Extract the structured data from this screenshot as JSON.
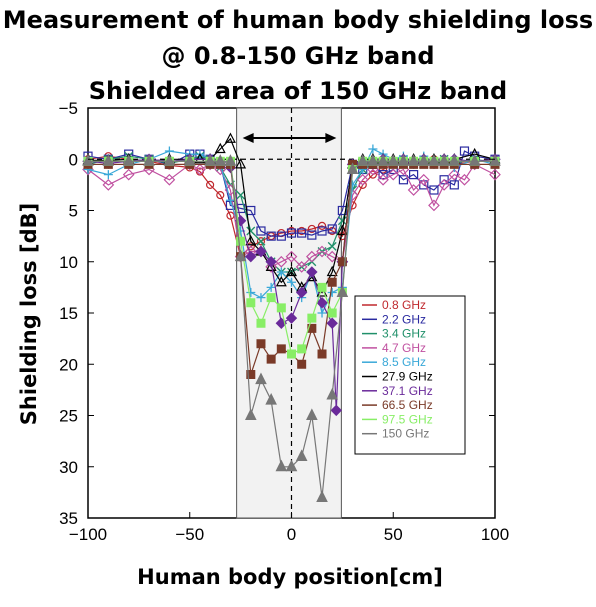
{
  "title": {
    "line1": "Measurement of human body shielding loss",
    "line2": "@ 0.8-150 GHz band",
    "line3": "Shielded area of 150 GHz band"
  },
  "chart_data": {
    "type": "line",
    "xlabel": "Human body position[cm]",
    "ylabel": "Shielding loss [dB]",
    "xlim": [
      -100,
      100
    ],
    "ylim": [
      -5,
      35
    ],
    "y_inverted": true,
    "xticks": [
      -100,
      -50,
      0,
      50,
      100
    ],
    "yticks": [
      -5,
      0,
      5,
      10,
      15,
      20,
      25,
      30,
      35
    ],
    "shaded_region": [
      -25,
      25
    ],
    "arrow_span": [
      -25,
      25
    ],
    "legend_position": "center-right",
    "series": [
      {
        "name": "0.8 GHz",
        "color": "#c0282d",
        "marker": "circle",
        "x": [
          -100,
          -90,
          -80,
          -70,
          -60,
          -50,
          -45,
          -40,
          -35,
          -30,
          -25,
          -20,
          -15,
          -10,
          -5,
          0,
          5,
          10,
          15,
          20,
          25,
          30,
          35,
          40,
          45,
          50,
          55,
          60,
          65,
          70,
          75,
          80,
          90,
          100
        ],
        "y": [
          0,
          -0.3,
          0,
          0.2,
          0.6,
          0.8,
          1.2,
          2.5,
          3.5,
          5.5,
          9.5,
          8.5,
          8,
          7.5,
          7.2,
          7,
          7,
          6.8,
          6.5,
          7,
          7.5,
          4.5,
          2.5,
          1.5,
          1,
          0.5,
          0.5,
          0.2,
          0.3,
          0,
          0,
          0.5,
          0.2,
          0
        ]
      },
      {
        "name": "2.2 GHz",
        "color": "#2a2aa0",
        "marker": "square-open",
        "x": [
          -100,
          -90,
          -80,
          -70,
          -60,
          -50,
          -45,
          -40,
          -35,
          -30,
          -25,
          -20,
          -15,
          -10,
          -5,
          0,
          5,
          10,
          15,
          20,
          25,
          30,
          35,
          40,
          45,
          50,
          55,
          60,
          65,
          70,
          75,
          80,
          85,
          90,
          100
        ],
        "y": [
          -0.3,
          0,
          -0.5,
          0,
          0.5,
          -0.5,
          -0.5,
          0,
          0.5,
          4.5,
          4.8,
          5,
          7,
          7.5,
          7.5,
          7.2,
          7.2,
          7.4,
          7,
          6.8,
          5,
          0.5,
          1,
          0.5,
          1.5,
          1,
          2,
          1.5,
          2.5,
          3,
          2,
          2.5,
          -0.8,
          -0.3,
          0
        ]
      },
      {
        "name": "3.4 GHz",
        "color": "#20906a",
        "marker": "cross",
        "x": [
          -100,
          -90,
          -80,
          -70,
          -60,
          -50,
          -45,
          -40,
          -35,
          -30,
          -25,
          -20,
          -15,
          -10,
          -5,
          0,
          5,
          10,
          15,
          20,
          25,
          30,
          35,
          40,
          45,
          50,
          55,
          60,
          65,
          70,
          75,
          80,
          90,
          100
        ],
        "y": [
          0.5,
          0,
          -0.3,
          0,
          0.4,
          0,
          -0.3,
          0,
          0.8,
          2.5,
          3.5,
          7,
          8,
          10,
          11,
          11,
          10.5,
          10,
          9,
          8.5,
          6,
          3,
          1,
          0.5,
          0.4,
          0.3,
          0,
          0.3,
          0.5,
          0.3,
          0,
          0.4,
          0,
          0.3
        ]
      },
      {
        "name": "4.7 GHz",
        "color": "#c050a0",
        "marker": "diamond-open",
        "x": [
          -100,
          -90,
          -80,
          -70,
          -60,
          -50,
          -45,
          -40,
          -35,
          -30,
          -25,
          -20,
          -15,
          -10,
          -5,
          0,
          5,
          10,
          15,
          20,
          25,
          30,
          35,
          40,
          45,
          50,
          55,
          60,
          65,
          70,
          75,
          80,
          85,
          90,
          100
        ],
        "y": [
          1,
          2.5,
          1.5,
          1,
          2,
          0.5,
          1,
          0.5,
          1,
          3,
          9.5,
          9,
          9,
          10.5,
          10,
          9.5,
          10.5,
          9.5,
          9,
          9.5,
          10,
          3.5,
          2,
          1,
          2,
          1.5,
          1,
          3,
          2,
          4.5,
          2.5,
          1.5,
          2,
          0.5,
          1.5
        ]
      },
      {
        "name": "8.5 GHz",
        "color": "#3aa8d8",
        "marker": "plus",
        "x": [
          -100,
          -90,
          -80,
          -70,
          -60,
          -50,
          -45,
          -40,
          -35,
          -30,
          -25,
          -20,
          -15,
          -10,
          -5,
          0,
          5,
          10,
          15,
          20,
          25,
          30,
          35,
          40,
          45,
          50,
          55,
          60,
          65,
          70,
          75,
          80,
          90,
          100
        ],
        "y": [
          1,
          1.5,
          0.5,
          0,
          -0.8,
          -0.5,
          -0.5,
          0,
          0.5,
          4,
          7,
          13,
          13.5,
          12.5,
          11,
          12,
          13.5,
          11,
          15,
          13,
          12.5,
          2.5,
          1,
          -1,
          -0.5,
          0,
          -0.3,
          0.5,
          -0.3,
          0.5,
          0,
          0.8,
          0,
          0.5
        ]
      },
      {
        "name": "27.9 GHz",
        "color": "#000000",
        "marker": "triangle-open",
        "x": [
          -100,
          -90,
          -80,
          -70,
          -60,
          -50,
          -45,
          -40,
          -35,
          -30,
          -25,
          -20,
          -15,
          -10,
          -5,
          0,
          5,
          10,
          15,
          20,
          25,
          30,
          35,
          40,
          45,
          50,
          55,
          60,
          65,
          70,
          75,
          80,
          90,
          100
        ],
        "y": [
          0.1,
          0.1,
          0,
          0.2,
          0,
          0,
          0,
          0,
          -1,
          -2,
          0.5,
          8,
          9,
          10.5,
          12,
          11,
          12.5,
          11.5,
          13,
          11,
          7,
          0.5,
          0,
          0,
          0,
          0,
          0,
          0,
          0,
          0,
          0,
          0,
          -0.5,
          0
        ]
      },
      {
        "name": "37.1 GHz",
        "color": "#6a2a9a",
        "marker": "diamond",
        "x": [
          -100,
          -90,
          -80,
          -70,
          -60,
          -50,
          -40,
          -35,
          -30,
          -25,
          -20,
          -15,
          -10,
          -5,
          0,
          5,
          10,
          15,
          20,
          22,
          25,
          30,
          35,
          40,
          45,
          50,
          55,
          60,
          65,
          70,
          75,
          80,
          90,
          100
        ],
        "y": [
          0.2,
          0.4,
          0.2,
          0,
          0.2,
          0,
          0,
          0.3,
          0.8,
          6,
          9.5,
          9,
          10,
          16,
          15.5,
          13,
          11,
          14,
          16,
          24.5,
          10,
          0.5,
          0.3,
          0.2,
          0,
          0.2,
          0,
          0.3,
          0,
          0.2,
          0,
          0,
          0.2,
          0
        ]
      },
      {
        "name": "66.5 GHz",
        "color": "#7a3a28",
        "marker": "square",
        "x": [
          -100,
          -90,
          -80,
          -70,
          -60,
          -50,
          -40,
          -35,
          -30,
          -25,
          -20,
          -15,
          -10,
          -5,
          0,
          5,
          10,
          15,
          20,
          25,
          30,
          35,
          40,
          45,
          50,
          55,
          60,
          65,
          70,
          75,
          80,
          90,
          100
        ],
        "y": [
          0.5,
          0.5,
          0.5,
          0.5,
          0.5,
          0.5,
          0.5,
          0.5,
          0.5,
          9.5,
          21,
          18,
          19.5,
          18.5,
          19,
          20,
          16.5,
          19,
          12,
          10,
          0.5,
          0.5,
          0.5,
          0.5,
          0.5,
          0.5,
          0.5,
          0.5,
          0.5,
          0.5,
          0.5,
          0.5,
          0.5
        ]
      },
      {
        "name": "97.5 GHz",
        "color": "#88ee66",
        "marker": "square",
        "x": [
          -100,
          -90,
          -80,
          -70,
          -60,
          -50,
          -40,
          -35,
          -30,
          -25,
          -20,
          -15,
          -10,
          -5,
          0,
          5,
          10,
          15,
          20,
          25,
          30,
          35,
          40,
          45,
          50,
          55,
          60,
          65,
          70,
          75,
          80,
          90,
          100
        ],
        "y": [
          0.2,
          0.2,
          0.2,
          0.2,
          0.2,
          0.2,
          0.2,
          0.2,
          0.2,
          8,
          14,
          16,
          13.5,
          14.5,
          19,
          18.5,
          15.5,
          12.5,
          15,
          13,
          1,
          0.2,
          0.2,
          0.2,
          0.2,
          0.2,
          0.2,
          0.2,
          0.2,
          0.2,
          0.2,
          0.2,
          0.2
        ]
      },
      {
        "name": "150 GHz",
        "color": "#777777",
        "marker": "triangle",
        "x": [
          -100,
          -90,
          -80,
          -70,
          -60,
          -50,
          -40,
          -35,
          -30,
          -25,
          -20,
          -15,
          -10,
          -5,
          0,
          5,
          10,
          15,
          20,
          25,
          30,
          35,
          40,
          45,
          50,
          55,
          60,
          65,
          70,
          75,
          80,
          90,
          100
        ],
        "y": [
          0.2,
          0.2,
          0.2,
          0.2,
          0.2,
          0.2,
          0.2,
          0.2,
          0.2,
          9.5,
          25,
          21.5,
          23.5,
          30,
          30,
          29,
          25,
          33,
          23,
          13,
          1,
          0.2,
          0.2,
          0.2,
          0.2,
          0.2,
          0.2,
          0.2,
          0.2,
          0.2,
          0.2,
          0.2,
          0.2
        ]
      }
    ]
  }
}
